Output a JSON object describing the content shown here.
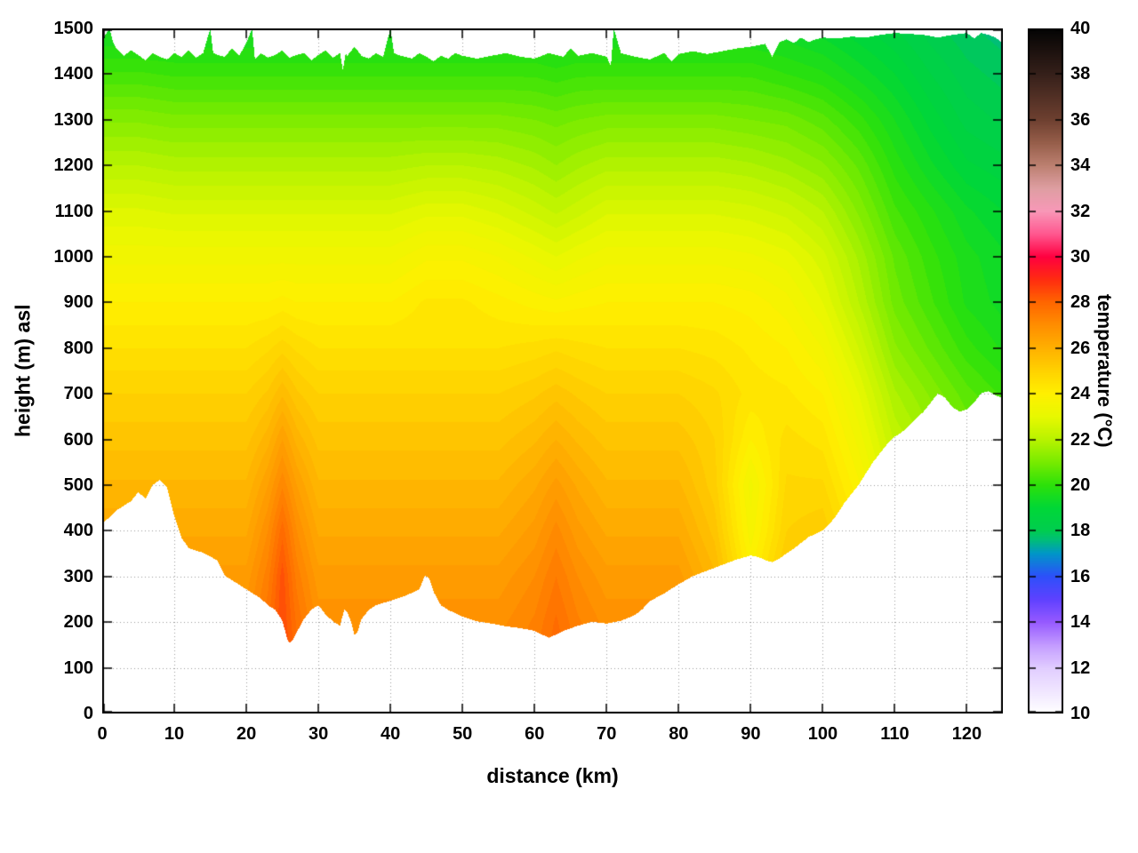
{
  "chart_data": {
    "type": "heatmap",
    "style": "filled-contour-cross-section",
    "title": "",
    "xlabel": "distance (km)",
    "ylabel": "height (m) asl",
    "colorbar_label": "temperature (°C)",
    "xlim": [
      0,
      125
    ],
    "ylim": [
      0,
      1500
    ],
    "clim": [
      10,
      40
    ],
    "grid": true,
    "legend": "colorbar-right",
    "contour_step": 0.25,
    "x_ticks": [
      0,
      10,
      20,
      30,
      40,
      50,
      60,
      70,
      80,
      90,
      100,
      110,
      120
    ],
    "y_ticks": [
      0,
      100,
      200,
      300,
      400,
      500,
      600,
      700,
      800,
      900,
      1000,
      1100,
      1200,
      1300,
      1400,
      1500
    ],
    "colorbar_ticks": [
      10,
      12,
      14,
      16,
      18,
      20,
      22,
      24,
      26,
      28,
      30,
      32,
      34,
      36,
      38,
      40
    ],
    "palette_stops": [
      [
        10,
        255,
        255,
        255
      ],
      [
        11,
        240,
        230,
        255
      ],
      [
        12,
        225,
        205,
        255
      ],
      [
        13,
        195,
        155,
        255
      ],
      [
        14,
        150,
        90,
        255
      ],
      [
        15,
        95,
        65,
        255
      ],
      [
        16,
        45,
        80,
        250
      ],
      [
        17,
        0,
        150,
        200
      ],
      [
        17.6,
        0,
        190,
        120
      ],
      [
        18,
        0,
        205,
        80
      ],
      [
        19,
        0,
        215,
        55
      ],
      [
        20,
        45,
        225,
        10
      ],
      [
        21,
        120,
        235,
        0
      ],
      [
        22,
        185,
        243,
        0
      ],
      [
        23,
        232,
        248,
        0
      ],
      [
        24,
        255,
        240,
        0
      ],
      [
        25,
        255,
        210,
        0
      ],
      [
        26,
        255,
        176,
        0
      ],
      [
        27,
        255,
        142,
        0
      ],
      [
        28,
        255,
        102,
        0
      ],
      [
        29,
        255,
        44,
        16
      ],
      [
        30,
        255,
        0,
        64
      ],
      [
        31,
        255,
        88,
        144
      ],
      [
        32,
        248,
        152,
        184
      ],
      [
        33,
        222,
        158,
        162
      ],
      [
        34,
        188,
        128,
        112
      ],
      [
        35,
        150,
        94,
        74
      ],
      [
        36,
        110,
        64,
        48
      ],
      [
        38,
        54,
        32,
        26
      ],
      [
        40,
        4,
        4,
        4
      ]
    ],
    "x": [
      0,
      5,
      10,
      15,
      20,
      23,
      25,
      27,
      30,
      35,
      40,
      45,
      50,
      55,
      60,
      63,
      66,
      70,
      75,
      80,
      85,
      90,
      95,
      100,
      105,
      110,
      115,
      120,
      125
    ],
    "z": [
      0,
      100,
      200,
      300,
      400,
      500,
      600,
      700,
      800,
      900,
      1000,
      1100,
      1200,
      1300,
      1400,
      1500
    ],
    "temperature": [
      [
        27.2,
        27.2,
        27.2,
        27.2,
        27.2,
        28.0,
        28.8,
        28.0,
        27.2,
        27.2,
        27.2,
        27.2,
        27.2,
        27.2,
        27.6,
        28.1,
        27.6,
        27.2,
        27.2,
        27.2,
        26.8,
        24.6,
        26.4,
        26.2,
        25.2,
        24.0,
        23.4,
        22.8,
        22.4
      ],
      [
        27.1,
        27.1,
        27.1,
        27.1,
        27.1,
        27.9,
        28.7,
        27.9,
        27.1,
        27.1,
        27.1,
        27.1,
        27.1,
        27.1,
        27.5,
        28.0,
        27.5,
        27.1,
        27.1,
        27.1,
        26.7,
        24.5,
        26.3,
        26.1,
        25.1,
        23.9,
        23.3,
        22.7,
        22.3
      ],
      [
        26.9,
        26.9,
        26.9,
        26.9,
        26.9,
        27.7,
        28.5,
        27.7,
        26.9,
        26.9,
        26.9,
        26.9,
        26.9,
        26.9,
        27.3,
        27.8,
        27.3,
        26.9,
        26.9,
        26.9,
        26.4,
        24.3,
        26.1,
        25.9,
        24.9,
        23.7,
        23.1,
        22.5,
        22.1
      ],
      [
        26.6,
        26.6,
        26.6,
        26.6,
        26.6,
        27.4,
        28.4,
        27.4,
        26.6,
        26.6,
        26.6,
        26.6,
        26.6,
        26.6,
        27.0,
        27.5,
        27.0,
        26.6,
        26.6,
        26.6,
        25.8,
        24.0,
        25.4,
        25.6,
        24.6,
        23.4,
        22.8,
        22.2,
        21.8
      ],
      [
        26.2,
        26.2,
        26.2,
        26.2,
        26.2,
        27.0,
        27.9,
        27.0,
        26.2,
        26.2,
        26.2,
        26.2,
        26.2,
        26.2,
        26.6,
        27.1,
        26.6,
        26.2,
        26.2,
        26.2,
        25.4,
        23.6,
        25.0,
        25.2,
        24.2,
        23.0,
        22.4,
        21.8,
        21.4
      ],
      [
        25.8,
        25.8,
        25.8,
        25.8,
        25.8,
        26.5,
        27.2,
        26.5,
        25.8,
        25.8,
        25.8,
        25.8,
        25.8,
        25.8,
        26.2,
        26.6,
        26.2,
        25.8,
        25.8,
        25.8,
        25.1,
        23.4,
        24.8,
        24.8,
        23.8,
        22.6,
        22.0,
        21.4,
        21.0
      ],
      [
        25.4,
        25.4,
        25.4,
        25.4,
        25.4,
        25.9,
        26.5,
        25.9,
        25.4,
        25.4,
        25.4,
        25.4,
        25.4,
        25.4,
        25.7,
        26.0,
        25.7,
        25.4,
        25.4,
        25.4,
        25.0,
        24.0,
        24.6,
        24.4,
        23.4,
        22.2,
        21.6,
        21.0,
        20.6
      ],
      [
        25.0,
        25.0,
        25.0,
        25.0,
        25.0,
        25.3,
        25.7,
        25.3,
        25.0,
        25.0,
        25.0,
        25.0,
        25.0,
        25.0,
        25.2,
        25.4,
        25.2,
        25.0,
        25.0,
        25.0,
        24.8,
        24.4,
        24.3,
        24.0,
        23.0,
        21.8,
        21.2,
        20.6,
        20.2
      ],
      [
        24.5,
        24.5,
        24.5,
        24.5,
        24.5,
        24.7,
        24.9,
        24.7,
        24.5,
        24.5,
        24.5,
        24.5,
        24.5,
        24.5,
        24.6,
        24.7,
        24.6,
        24.5,
        24.5,
        24.5,
        24.4,
        24.2,
        24.0,
        23.5,
        22.5,
        21.3,
        20.7,
        20.1,
        19.7
      ],
      [
        24.0,
        24.0,
        24.0,
        24.0,
        24.0,
        24.0,
        24.1,
        24.0,
        24.0,
        24.0,
        24.0,
        24.3,
        24.3,
        24.1,
        23.9,
        23.8,
        23.9,
        24.0,
        24.0,
        24.0,
        24.0,
        23.9,
        23.6,
        23.0,
        22.0,
        20.9,
        20.3,
        19.7,
        19.4
      ],
      [
        23.4,
        23.4,
        23.4,
        23.4,
        23.4,
        23.4,
        23.4,
        23.4,
        23.4,
        23.4,
        23.4,
        23.7,
        23.7,
        23.5,
        23.2,
        23.0,
        23.2,
        23.4,
        23.4,
        23.4,
        23.4,
        23.3,
        23.1,
        22.6,
        21.7,
        20.7,
        20.1,
        19.6,
        19.3
      ],
      [
        22.8,
        22.8,
        22.7,
        22.7,
        22.7,
        22.7,
        22.7,
        22.7,
        22.7,
        22.7,
        22.7,
        22.9,
        22.9,
        22.7,
        22.4,
        22.2,
        22.4,
        22.7,
        22.7,
        22.7,
        22.7,
        22.6,
        22.4,
        22.0,
        21.2,
        20.3,
        19.8,
        19.3,
        19.0
      ],
      [
        22.0,
        22.0,
        21.9,
        21.9,
        21.9,
        21.9,
        21.9,
        21.9,
        21.9,
        21.9,
        21.9,
        22.0,
        22.0,
        21.9,
        21.7,
        21.5,
        21.7,
        21.9,
        21.9,
        21.9,
        21.9,
        21.8,
        21.6,
        21.3,
        20.7,
        19.9,
        19.3,
        18.8,
        18.6
      ],
      [
        21.2,
        21.2,
        21.1,
        21.1,
        21.1,
        21.1,
        21.1,
        21.1,
        21.1,
        21.1,
        21.1,
        21.1,
        21.1,
        21.1,
        21.0,
        20.9,
        21.0,
        21.1,
        21.1,
        21.1,
        21.1,
        21.0,
        20.9,
        20.6,
        20.1,
        19.5,
        18.9,
        18.4,
        18.2
      ],
      [
        20.3,
        20.3,
        20.2,
        20.2,
        20.2,
        20.2,
        20.2,
        20.2,
        20.2,
        20.2,
        20.2,
        20.2,
        20.2,
        20.2,
        20.2,
        20.1,
        20.2,
        20.2,
        20.2,
        20.2,
        20.2,
        20.2,
        20.0,
        19.8,
        19.4,
        19.0,
        18.5,
        18.1,
        17.9
      ],
      [
        19.4,
        19.4,
        19.4,
        19.4,
        19.4,
        19.4,
        19.4,
        19.4,
        19.4,
        19.4,
        19.4,
        19.4,
        19.4,
        19.4,
        19.4,
        19.3,
        19.4,
        19.4,
        19.4,
        19.4,
        19.4,
        19.4,
        19.3,
        19.1,
        18.8,
        18.5,
        18.1,
        17.8,
        17.6
      ]
    ],
    "terrain_profile": {
      "x": [
        0,
        2,
        4,
        5,
        6,
        7,
        8,
        9,
        10,
        11,
        12,
        14,
        16,
        17,
        18,
        20,
        22,
        23,
        24,
        25,
        25.7,
        26,
        26.5,
        27,
        28,
        29,
        30,
        31,
        32,
        33,
        33.6,
        34,
        34.6,
        35,
        35.4,
        36,
        37,
        38,
        40,
        42,
        44,
        44.8,
        45.4,
        46,
        47,
        48,
        50,
        52,
        54,
        56,
        58,
        60,
        61,
        62,
        63,
        64,
        66,
        68,
        70,
        72,
        74,
        75,
        76,
        78,
        80,
        82,
        84,
        86,
        88,
        90,
        91,
        92,
        93,
        94,
        95,
        96,
        98,
        100,
        101,
        102,
        103,
        104,
        105,
        106,
        107,
        108,
        109,
        110,
        111,
        112,
        113,
        114,
        115,
        116,
        117,
        118,
        119,
        120,
        121,
        122,
        123,
        124,
        125
      ],
      "height": [
        415,
        445,
        465,
        485,
        470,
        500,
        512,
        495,
        432,
        385,
        362,
        352,
        335,
        302,
        292,
        272,
        252,
        237,
        227,
        203,
        162,
        155,
        162,
        178,
        207,
        227,
        237,
        217,
        202,
        192,
        228,
        222,
        198,
        172,
        178,
        207,
        227,
        237,
        247,
        257,
        272,
        302,
        296,
        266,
        237,
        227,
        212,
        202,
        197,
        191,
        187,
        181,
        173,
        166,
        173,
        181,
        192,
        201,
        197,
        203,
        216,
        229,
        246,
        263,
        283,
        301,
        313,
        325,
        337,
        346,
        343,
        336,
        331,
        339,
        351,
        361,
        386,
        401,
        416,
        436,
        461,
        481,
        501,
        526,
        551,
        571,
        591,
        606,
        616,
        631,
        646,
        661,
        681,
        701,
        691,
        671,
        661,
        666,
        681,
        701,
        706,
        696,
        691
      ]
    },
    "top_boundary": {
      "x": [
        0,
        1,
        1.5,
        2,
        3,
        4,
        5,
        6,
        7,
        8,
        9,
        10,
        11,
        12,
        13,
        14,
        15,
        15.4,
        16,
        17,
        18,
        19,
        20,
        20.8,
        21.2,
        22,
        23,
        24,
        25,
        26,
        27,
        28,
        29,
        30,
        31,
        32,
        33,
        33.4,
        33.8,
        34,
        35,
        36,
        37,
        38,
        39,
        40,
        40.5,
        41,
        42,
        43,
        44,
        45,
        46,
        47,
        48,
        49,
        50,
        52,
        54,
        56,
        58,
        60,
        62,
        64,
        65,
        66,
        68,
        70,
        70.6,
        71,
        72,
        74,
        76,
        78,
        79,
        80,
        82,
        84,
        86,
        88,
        90,
        92,
        93,
        94,
        95,
        96,
        97,
        98,
        99,
        100,
        102,
        104,
        106,
        108,
        110,
        112,
        114,
        116,
        118,
        120,
        121,
        122,
        123,
        124,
        125
      ],
      "height": [
        1475,
        1500,
        1470,
        1455,
        1440,
        1452,
        1442,
        1430,
        1446,
        1438,
        1432,
        1446,
        1438,
        1452,
        1436,
        1446,
        1500,
        1446,
        1442,
        1438,
        1456,
        1440,
        1468,
        1500,
        1432,
        1446,
        1436,
        1442,
        1452,
        1436,
        1442,
        1446,
        1430,
        1442,
        1452,
        1436,
        1446,
        1408,
        1446,
        1440,
        1460,
        1440,
        1434,
        1446,
        1438,
        1500,
        1446,
        1442,
        1438,
        1434,
        1446,
        1438,
        1428,
        1440,
        1434,
        1446,
        1440,
        1434,
        1440,
        1446,
        1438,
        1434,
        1446,
        1438,
        1456,
        1440,
        1446,
        1438,
        1418,
        1500,
        1446,
        1438,
        1432,
        1446,
        1428,
        1444,
        1450,
        1444,
        1450,
        1456,
        1460,
        1466,
        1438,
        1470,
        1476,
        1468,
        1480,
        1470,
        1476,
        1480,
        1478,
        1482,
        1480,
        1486,
        1490,
        1488,
        1486,
        1480,
        1486,
        1490,
        1478,
        1490,
        1486,
        1480,
        1468
      ]
    }
  }
}
